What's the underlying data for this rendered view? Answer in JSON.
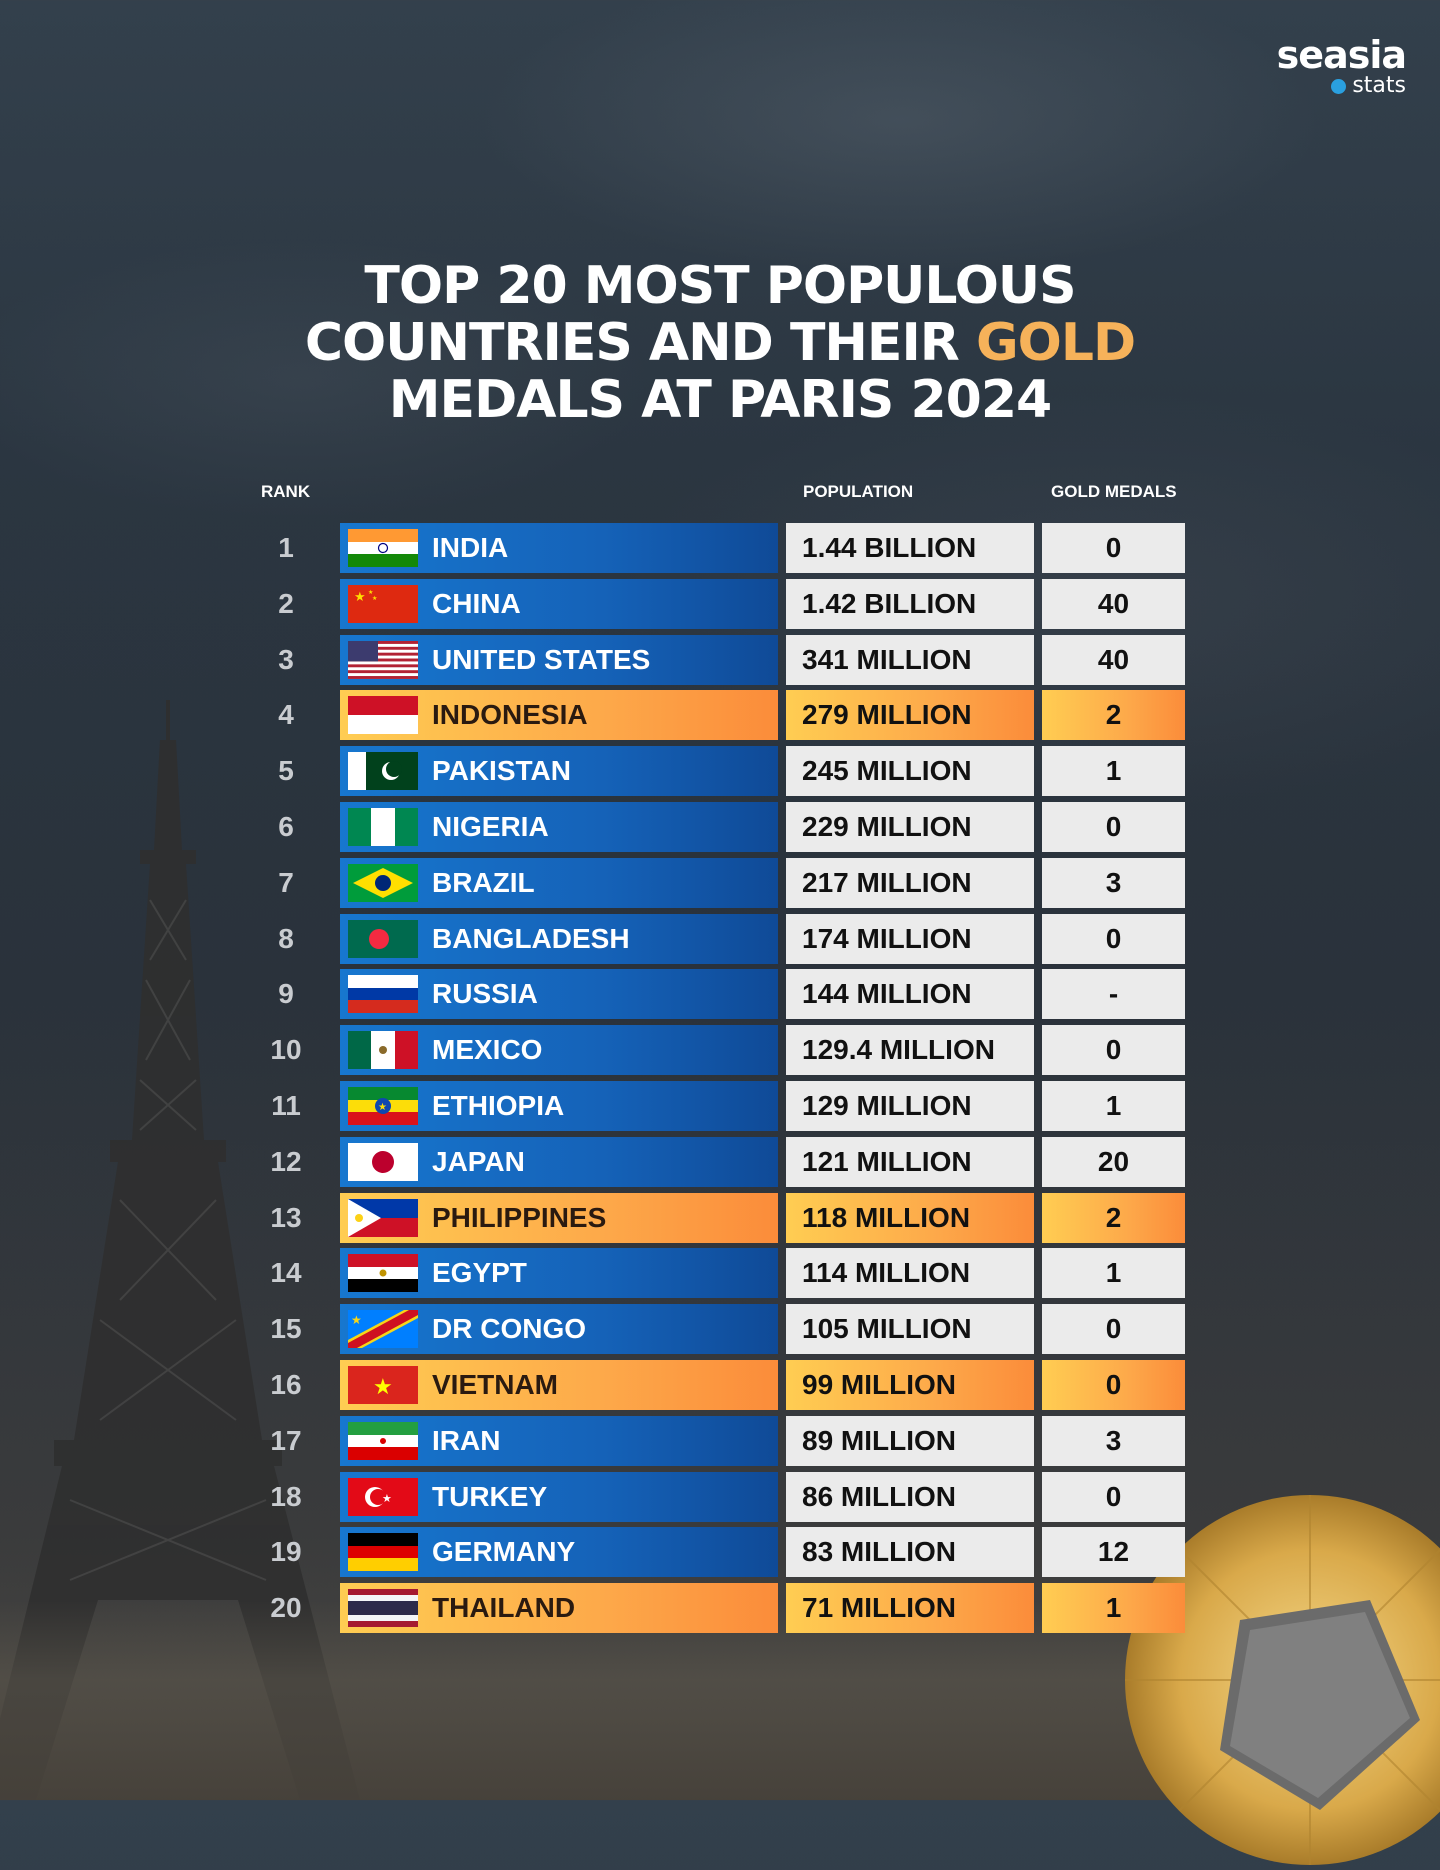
{
  "logo": {
    "name": "seasia",
    "sub": "stats"
  },
  "title": {
    "line1": "TOP 20 MOST POPULOUS",
    "line2": "COUNTRIES AND THEIR",
    "line2_gold": "GOLD",
    "line3": "MEDALS AT PARIS 2024"
  },
  "headers": {
    "rank": "RANK",
    "population": "POPULATION",
    "gold": "GOLD MEDALS"
  },
  "colors": {
    "blue": "#1777cf",
    "orange": "#fda94a",
    "gold_text": "#f6b25a",
    "cell": "#ebebeb"
  },
  "rows": [
    {
      "rank": "1",
      "country": "INDIA",
      "population": "1.44 BILLION",
      "gold": "0",
      "highlight": false,
      "flag": "india-flag-icon"
    },
    {
      "rank": "2",
      "country": "CHINA",
      "population": "1.42 BILLION",
      "gold": "40",
      "highlight": false,
      "flag": "china-flag-icon"
    },
    {
      "rank": "3",
      "country": "UNITED STATES",
      "population": "341 MILLION",
      "gold": "40",
      "highlight": false,
      "flag": "usa-flag-icon"
    },
    {
      "rank": "4",
      "country": "INDONESIA",
      "population": "279 MILLION",
      "gold": "2",
      "highlight": true,
      "flag": "indonesia-flag-icon"
    },
    {
      "rank": "5",
      "country": "PAKISTAN",
      "population": "245 MILLION",
      "gold": "1",
      "highlight": false,
      "flag": "pakistan-flag-icon"
    },
    {
      "rank": "6",
      "country": "NIGERIA",
      "population": "229 MILLION",
      "gold": "0",
      "highlight": false,
      "flag": "nigeria-flag-icon"
    },
    {
      "rank": "7",
      "country": "BRAZIL",
      "population": "217 MILLION",
      "gold": "3",
      "highlight": false,
      "flag": "brazil-flag-icon"
    },
    {
      "rank": "8",
      "country": "BANGLADESH",
      "population": "174 MILLION",
      "gold": "0",
      "highlight": false,
      "flag": "bangladesh-flag-icon"
    },
    {
      "rank": "9",
      "country": "RUSSIA",
      "population": "144 MILLION",
      "gold": "-",
      "highlight": false,
      "flag": "russia-flag-icon"
    },
    {
      "rank": "10",
      "country": "MEXICO",
      "population": "129.4 MILLION",
      "gold": "0",
      "highlight": false,
      "flag": "mexico-flag-icon"
    },
    {
      "rank": "11",
      "country": "ETHIOPIA",
      "population": "129 MILLION",
      "gold": "1",
      "highlight": false,
      "flag": "ethiopia-flag-icon"
    },
    {
      "rank": "12",
      "country": "JAPAN",
      "population": "121 MILLION",
      "gold": "20",
      "highlight": false,
      "flag": "japan-flag-icon"
    },
    {
      "rank": "13",
      "country": "PHILIPPINES",
      "population": "118 MILLION",
      "gold": "2",
      "highlight": true,
      "flag": "philippines-flag-icon"
    },
    {
      "rank": "14",
      "country": "EGYPT",
      "population": "114 MILLION",
      "gold": "1",
      "highlight": false,
      "flag": "egypt-flag-icon"
    },
    {
      "rank": "15",
      "country": "DR CONGO",
      "population": "105 MILLION",
      "gold": "0",
      "highlight": false,
      "flag": "drcongo-flag-icon"
    },
    {
      "rank": "16",
      "country": "VIETNAM",
      "population": "99 MILLION",
      "gold": "0",
      "highlight": true,
      "flag": "vietnam-flag-icon"
    },
    {
      "rank": "17",
      "country": "IRAN",
      "population": "89 MILLION",
      "gold": "3",
      "highlight": false,
      "flag": "iran-flag-icon"
    },
    {
      "rank": "18",
      "country": "TURKEY",
      "population": "86 MILLION",
      "gold": "0",
      "highlight": false,
      "flag": "turkey-flag-icon"
    },
    {
      "rank": "19",
      "country": "GERMANY",
      "population": "83 MILLION",
      "gold": "12",
      "highlight": false,
      "flag": "germany-flag-icon"
    },
    {
      "rank": "20",
      "country": "THAILAND",
      "population": "71 MILLION",
      "gold": "1",
      "highlight": true,
      "flag": "thailand-flag-icon"
    }
  ]
}
